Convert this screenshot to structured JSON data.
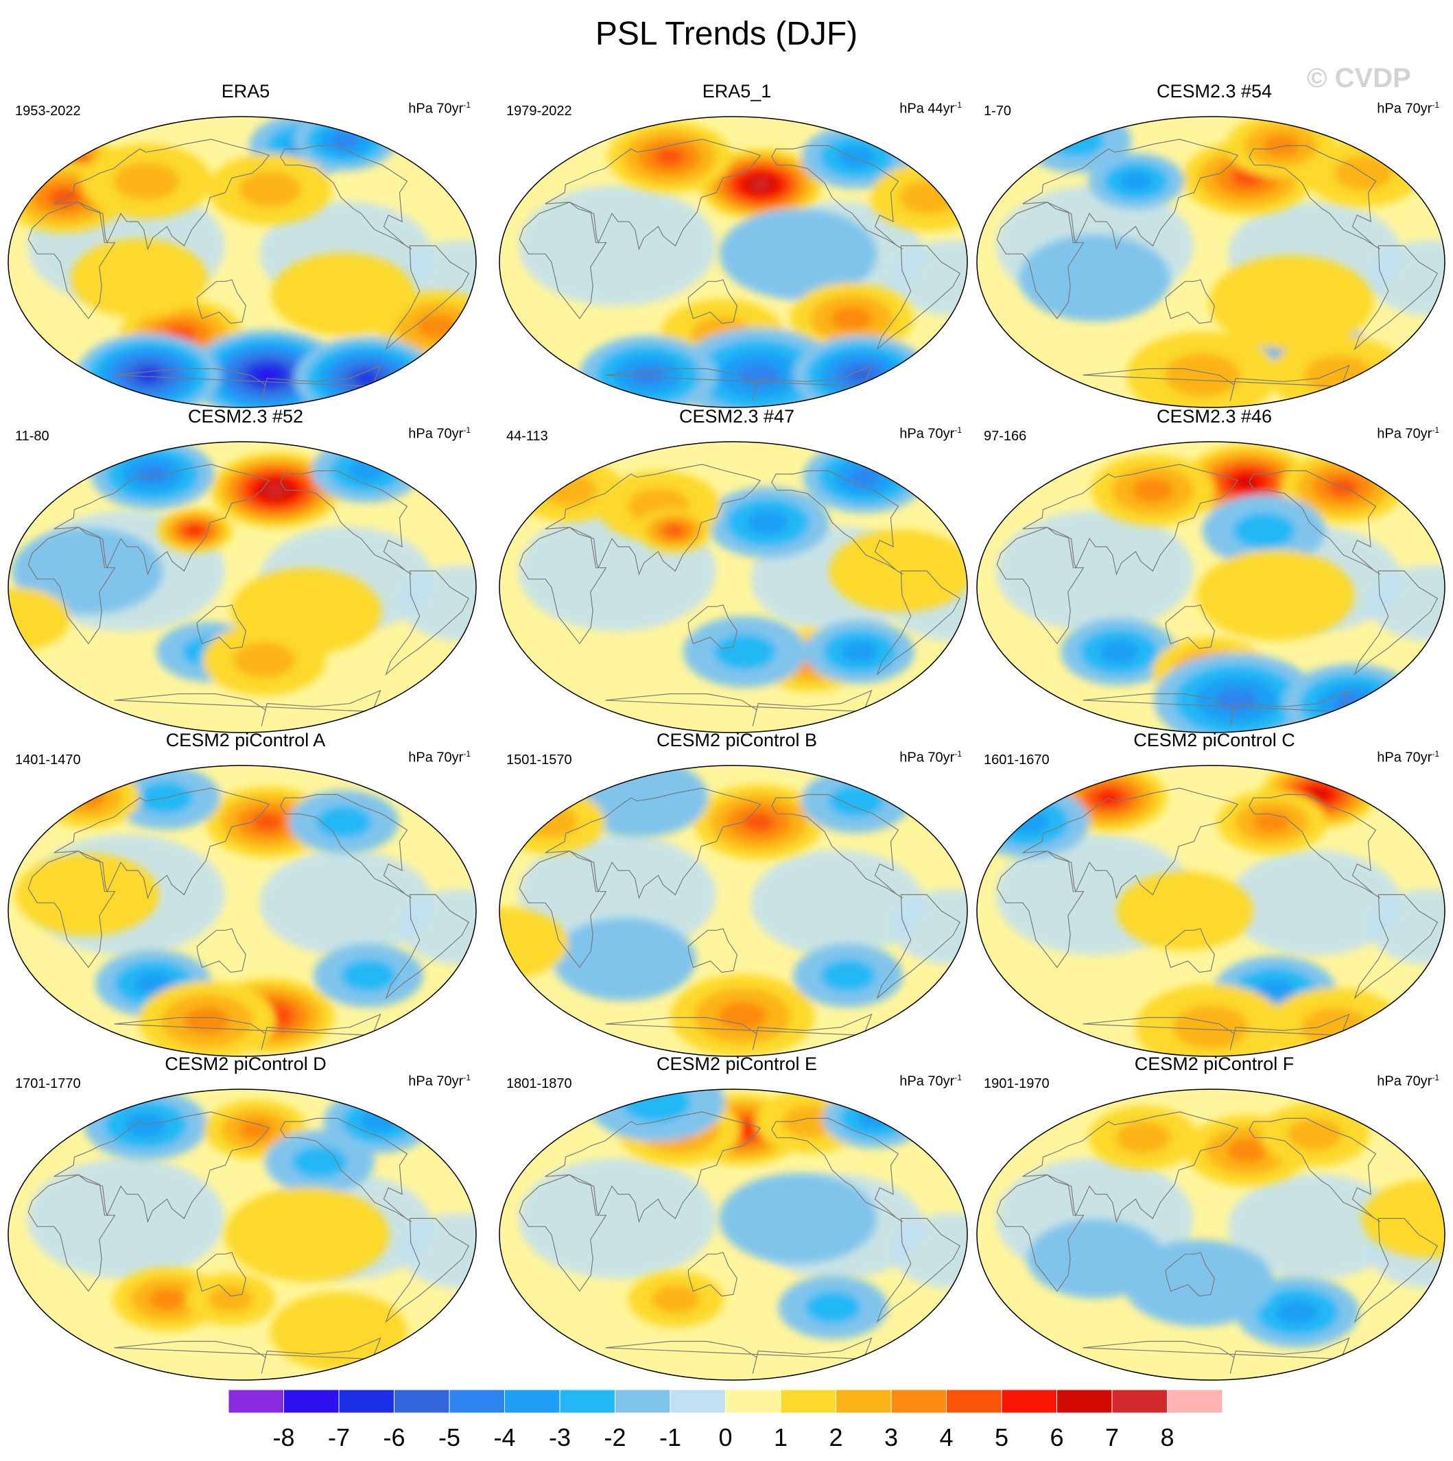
{
  "title": "PSL Trends (DJF)",
  "watermark": "© CVDP",
  "chart_data": {
    "type": "heatmap",
    "projection": "Robinson (Pacific-centered)",
    "variable": "PSL",
    "season": "DJF",
    "panels": [
      {
        "title": "ERA5",
        "period": "1953-2022",
        "units": "hPa 70yr",
        "units_sup": "-1",
        "features": [
          {
            "lon": 340,
            "lat": 55,
            "value": 6,
            "size": 1.0
          },
          {
            "lon": 355,
            "lat": 40,
            "value": 4,
            "size": 1.0
          },
          {
            "lon": 225,
            "lat": 72,
            "value": -3,
            "size": 0.8
          },
          {
            "lon": 280,
            "lat": 75,
            "value": -4,
            "size": 0.7
          },
          {
            "lon": 175,
            "lat": 45,
            "value": 2,
            "size": 1.0
          },
          {
            "lon": 60,
            "lat": 50,
            "value": 2,
            "size": 1.1
          },
          {
            "lon": 95,
            "lat": -45,
            "value": 4,
            "size": 1.0
          },
          {
            "lon": 320,
            "lat": -40,
            "value": 3,
            "size": 1.0
          },
          {
            "lon": 180,
            "lat": -70,
            "value": -7,
            "size": 1.5
          },
          {
            "lon": 40,
            "lat": -70,
            "value": -6,
            "size": 1.3
          },
          {
            "lon": 300,
            "lat": -72,
            "value": -6,
            "size": 1.3
          },
          {
            "lon": 70,
            "lat": -10,
            "value": 1,
            "size": 1.2
          },
          {
            "lon": 230,
            "lat": -20,
            "value": 1,
            "size": 1.3
          }
        ]
      },
      {
        "title": "ERA5_1",
        "period": "1979-2022",
        "units": "hPa 44yr",
        "units_sup": "-1",
        "features": [
          {
            "lon": 175,
            "lat": 48,
            "value": 7,
            "size": 1.0
          },
          {
            "lon": 80,
            "lat": 65,
            "value": 4,
            "size": 1.0
          },
          {
            "lon": 285,
            "lat": 65,
            "value": -3,
            "size": 0.8
          },
          {
            "lon": 320,
            "lat": 40,
            "value": 2,
            "size": 0.9
          },
          {
            "lon": 200,
            "lat": 5,
            "value": -1,
            "size": 1.5
          },
          {
            "lon": 250,
            "lat": -35,
            "value": 3,
            "size": 1.0
          },
          {
            "lon": 140,
            "lat": -45,
            "value": 2,
            "size": 1.0
          },
          {
            "lon": 180,
            "lat": -70,
            "value": -4,
            "size": 1.6
          },
          {
            "lon": 300,
            "lat": -70,
            "value": -5,
            "size": 1.2
          },
          {
            "lon": 50,
            "lat": -70,
            "value": -4,
            "size": 1.2
          }
        ]
      },
      {
        "title": "CESM2.3 #54",
        "period": "1-70",
        "units": "hPa 70yr",
        "units_sup": "-1",
        "features": [
          {
            "lon": 185,
            "lat": 52,
            "value": 4,
            "size": 1.1
          },
          {
            "lon": 235,
            "lat": 72,
            "value": 3,
            "size": 0.8
          },
          {
            "lon": 300,
            "lat": 55,
            "value": 2,
            "size": 0.9
          },
          {
            "lon": 340,
            "lat": 75,
            "value": -2,
            "size": 0.8
          },
          {
            "lon": 80,
            "lat": 50,
            "value": -3,
            "size": 0.6
          },
          {
            "lon": 60,
            "lat": -10,
            "value": -1,
            "size": 1.4
          },
          {
            "lon": 235,
            "lat": -50,
            "value": -4,
            "size": 1.0
          },
          {
            "lon": 215,
            "lat": -25,
            "value": 1,
            "size": 1.6
          },
          {
            "lon": 140,
            "lat": -70,
            "value": 2,
            "size": 1.4
          },
          {
            "lon": 300,
            "lat": -70,
            "value": 2,
            "size": 1.2
          }
        ]
      },
      {
        "title": "CESM2.3 #52",
        "period": "11-80",
        "units": "hPa 70yr",
        "units_sup": "-1",
        "features": [
          {
            "lon": 185,
            "lat": 60,
            "value": 7,
            "size": 1.1
          },
          {
            "lon": 45,
            "lat": 70,
            "value": -4,
            "size": 1.0
          },
          {
            "lon": 300,
            "lat": 72,
            "value": -3,
            "size": 0.8
          },
          {
            "lon": 200,
            "lat": -15,
            "value": 1,
            "size": 1.4
          },
          {
            "lon": 110,
            "lat": 35,
            "value": 5,
            "size": 0.3
          },
          {
            "lon": 120,
            "lat": -40,
            "value": -2,
            "size": 0.7
          },
          {
            "lon": 170,
            "lat": -45,
            "value": 2,
            "size": 1.0
          },
          {
            "lon": 30,
            "lat": 10,
            "value": -1,
            "size": 1.4
          },
          {
            "lon": 330,
            "lat": -20,
            "value": 1,
            "size": 0.8
          }
        ]
      },
      {
        "title": "CESM2.3 #47",
        "period": "44-113",
        "units": "hPa 70yr",
        "units_sup": "-1",
        "features": [
          {
            "lon": 300,
            "lat": 68,
            "value": -4,
            "size": 1.0
          },
          {
            "lon": 180,
            "lat": 40,
            "value": -3,
            "size": 1.0
          },
          {
            "lon": 80,
            "lat": 50,
            "value": 2,
            "size": 1.0
          },
          {
            "lon": 340,
            "lat": 60,
            "value": 2,
            "size": 0.8
          },
          {
            "lon": 220,
            "lat": -45,
            "value": 3,
            "size": 0.8
          },
          {
            "lon": 260,
            "lat": -40,
            "value": -3,
            "size": 0.8
          },
          {
            "lon": 160,
            "lat": -40,
            "value": -2,
            "size": 1.0
          },
          {
            "lon": 100,
            "lat": 35,
            "value": 4,
            "size": 0.3
          },
          {
            "lon": 280,
            "lat": 10,
            "value": 1,
            "size": 1.3
          }
        ]
      },
      {
        "title": "CESM2.3 #46",
        "period": "97-166",
        "units": "hPa 70yr",
        "units_sup": "-1",
        "features": [
          {
            "lon": 190,
            "lat": 65,
            "value": 6,
            "size": 1.1
          },
          {
            "lon": 290,
            "lat": 62,
            "value": 4,
            "size": 1.0
          },
          {
            "lon": 90,
            "lat": 60,
            "value": 3,
            "size": 1.0
          },
          {
            "lon": 195,
            "lat": 35,
            "value": -2,
            "size": 1.0
          },
          {
            "lon": 70,
            "lat": -40,
            "value": -3,
            "size": 0.9
          },
          {
            "lon": 200,
            "lat": -5,
            "value": 1,
            "size": 1.5
          },
          {
            "lon": 150,
            "lat": -52,
            "value": 3,
            "size": 0.9
          },
          {
            "lon": 180,
            "lat": -70,
            "value": -4,
            "size": 1.6
          },
          {
            "lon": 320,
            "lat": -72,
            "value": -4,
            "size": 1.2
          }
        ]
      },
      {
        "title": "CESM2 piControl A",
        "period": "1401-1470",
        "units": "hPa 70yr",
        "units_sup": "-1",
        "features": [
          {
            "lon": 175,
            "lat": 55,
            "value": 4,
            "size": 1.0
          },
          {
            "lon": 250,
            "lat": 55,
            "value": -2,
            "size": 0.8
          },
          {
            "lon": 60,
            "lat": 70,
            "value": -2,
            "size": 0.8
          },
          {
            "lon": 330,
            "lat": 70,
            "value": 3,
            "size": 0.7
          },
          {
            "lon": 70,
            "lat": -45,
            "value": -3,
            "size": 0.9
          },
          {
            "lon": 180,
            "lat": -65,
            "value": 5,
            "size": 1.1
          },
          {
            "lon": 110,
            "lat": -68,
            "value": 3,
            "size": 1.2
          },
          {
            "lon": 260,
            "lat": -40,
            "value": -2,
            "size": 0.8
          },
          {
            "lon": 30,
            "lat": 10,
            "value": 1,
            "size": 1.3
          }
        ]
      },
      {
        "title": "CESM2 piControl B",
        "period": "1501-1570",
        "units": "hPa 70yr",
        "units_sup": "-1",
        "features": [
          {
            "lon": 175,
            "lat": 55,
            "value": 4,
            "size": 1.1
          },
          {
            "lon": 40,
            "lat": 70,
            "value": -1,
            "size": 1.2
          },
          {
            "lon": 290,
            "lat": 68,
            "value": -2,
            "size": 0.8
          },
          {
            "lon": 330,
            "lat": 55,
            "value": 2,
            "size": 0.8
          },
          {
            "lon": 160,
            "lat": -65,
            "value": 3,
            "size": 1.3
          },
          {
            "lon": 60,
            "lat": -30,
            "value": -1,
            "size": 1.3
          },
          {
            "lon": 250,
            "lat": -40,
            "value": -2,
            "size": 0.8
          },
          {
            "lon": 330,
            "lat": -20,
            "value": 1,
            "size": 1.0
          }
        ]
      },
      {
        "title": "CESM2 piControl C",
        "period": "1601-1670",
        "units": "hPa 70yr",
        "units_sup": "-1",
        "features": [
          {
            "lon": 30,
            "lat": 70,
            "value": 5,
            "size": 0.9
          },
          {
            "lon": 280,
            "lat": 72,
            "value": 6,
            "size": 0.9
          },
          {
            "lon": 210,
            "lat": 55,
            "value": 3,
            "size": 0.8
          },
          {
            "lon": 330,
            "lat": 55,
            "value": -3,
            "size": 1.0
          },
          {
            "lon": 210,
            "lat": -50,
            "value": -3,
            "size": 1.0
          },
          {
            "lon": 130,
            "lat": 0,
            "value": 1,
            "size": 1.2
          },
          {
            "lon": 150,
            "lat": -72,
            "value": 2,
            "size": 1.4
          },
          {
            "lon": 300,
            "lat": -72,
            "value": 2,
            "size": 1.2
          }
        ]
      },
      {
        "title": "CESM2 piControl D",
        "period": "1701-1770",
        "units": "hPa 70yr",
        "units_sup": "-1",
        "features": [
          {
            "lon": 40,
            "lat": 68,
            "value": -3,
            "size": 1.0
          },
          {
            "lon": 310,
            "lat": 70,
            "value": -3,
            "size": 0.8
          },
          {
            "lon": 165,
            "lat": 65,
            "value": 3,
            "size": 0.7
          },
          {
            "lon": 220,
            "lat": 45,
            "value": -2,
            "size": 0.8
          },
          {
            "lon": 85,
            "lat": -40,
            "value": 3,
            "size": 0.8
          },
          {
            "lon": 200,
            "lat": 0,
            "value": 1,
            "size": 1.6
          },
          {
            "lon": 140,
            "lat": -40,
            "value": 2,
            "size": 0.5
          },
          {
            "lon": 250,
            "lat": -60,
            "value": 1,
            "size": 1.2
          }
        ]
      },
      {
        "title": "CESM2 piControl E",
        "period": "1801-1870",
        "units": "hPa 70yr",
        "units_sup": "-1",
        "features": [
          {
            "lon": 160,
            "lat": 65,
            "value": 5,
            "size": 1.0
          },
          {
            "lon": 90,
            "lat": 65,
            "value": 3,
            "size": 1.0
          },
          {
            "lon": 240,
            "lat": 70,
            "value": 2,
            "size": 0.8
          },
          {
            "lon": 40,
            "lat": 82,
            "value": -2,
            "size": 1.2
          },
          {
            "lon": 320,
            "lat": 72,
            "value": -3,
            "size": 0.7
          },
          {
            "lon": 240,
            "lat": -45,
            "value": -2,
            "size": 0.8
          },
          {
            "lon": 100,
            "lat": -40,
            "value": 2,
            "size": 0.6
          },
          {
            "lon": 200,
            "lat": 10,
            "value": -1,
            "size": 1.5
          }
        ]
      },
      {
        "title": "CESM2 piControl F",
        "period": "1901-1970",
        "units": "hPa 70yr",
        "units_sup": "-1",
        "features": [
          {
            "lon": 185,
            "lat": 52,
            "value": 3,
            "size": 1.0
          },
          {
            "lon": 260,
            "lat": 62,
            "value": 2,
            "size": 0.8
          },
          {
            "lon": 80,
            "lat": 60,
            "value": 2,
            "size": 0.8
          },
          {
            "lon": 230,
            "lat": -48,
            "value": -3,
            "size": 1.0
          },
          {
            "lon": 140,
            "lat": -30,
            "value": -1,
            "size": 1.4
          },
          {
            "lon": 320,
            "lat": 10,
            "value": 1,
            "size": 1.2
          },
          {
            "lon": 60,
            "lat": -15,
            "value": -1,
            "size": 1.2
          }
        ]
      }
    ],
    "colorbar": {
      "labels": [
        "-8",
        "-7",
        "-6",
        "-5",
        "-4",
        "-3",
        "-2",
        "-1",
        "0",
        "1",
        "2",
        "3",
        "4",
        "5",
        "6",
        "7",
        "8"
      ],
      "colors": [
        "#8a2be2",
        "#2e0ff0",
        "#1b30e6",
        "#3366dd",
        "#2d83f0",
        "#1f9ff5",
        "#23b8f5",
        "#80c4ec",
        "#bfe1f2",
        "#fff59c",
        "#fcd92c",
        "#fcb315",
        "#fc8a0e",
        "#fb5408",
        "#fb1505",
        "#d20a03",
        "#d22a2a",
        "#ffb3b3"
      ]
    }
  }
}
